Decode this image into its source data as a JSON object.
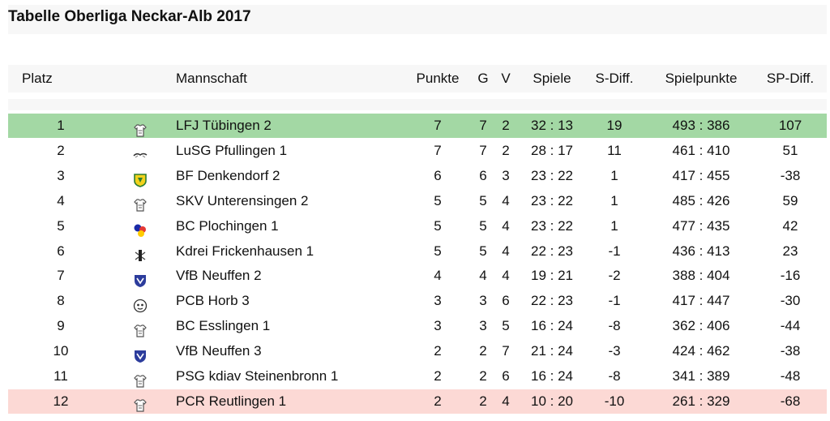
{
  "title": "Tabelle Oberliga Neckar-Alb 2017",
  "columns": {
    "platz": "Platz",
    "mannschaft": "Mannschaft",
    "punkte": "Punkte",
    "g": "G",
    "v": "V",
    "spiele": "Spiele",
    "s_diff": "S-Diff.",
    "spielpunkte": "Spielpunkte",
    "sp_diff": "SP-Diff."
  },
  "rows": [
    {
      "platz": "1",
      "team": "LFJ Tübingen 2",
      "punkte": "7",
      "g": "7",
      "v": "2",
      "spiele": "32 : 13",
      "s_diff": "19",
      "spielpunkte": "493 : 386",
      "sp_diff": "107",
      "logo": "shirt-icon",
      "highlight": "green"
    },
    {
      "platz": "2",
      "team": "LuSG Pfullingen 1",
      "punkte": "7",
      "g": "7",
      "v": "2",
      "spiele": "28 : 17",
      "s_diff": "11",
      "spielpunkte": "461 : 410",
      "sp_diff": "51",
      "logo": "bird-logo-icon",
      "highlight": ""
    },
    {
      "platz": "3",
      "team": "BF Denkendorf 2",
      "punkte": "6",
      "g": "6",
      "v": "3",
      "spiele": "23 : 22",
      "s_diff": "1",
      "spielpunkte": "417 : 455",
      "sp_diff": "-38",
      "logo": "crest-yellow-icon",
      "highlight": ""
    },
    {
      "platz": "4",
      "team": "SKV Unterensingen 2",
      "punkte": "5",
      "g": "5",
      "v": "4",
      "spiele": "23 : 22",
      "s_diff": "1",
      "spielpunkte": "485 : 426",
      "sp_diff": "59",
      "logo": "shirt-icon",
      "highlight": ""
    },
    {
      "platz": "5",
      "team": "BC Plochingen 1",
      "punkte": "5",
      "g": "5",
      "v": "4",
      "spiele": "23 : 22",
      "s_diff": "1",
      "spielpunkte": "477 : 435",
      "sp_diff": "42",
      "logo": "balls-logo-icon",
      "highlight": ""
    },
    {
      "platz": "6",
      "team": "Kdrei Frickenhausen 1",
      "punkte": "5",
      "g": "5",
      "v": "4",
      "spiele": "22 : 23",
      "s_diff": "-1",
      "spielpunkte": "436 : 413",
      "sp_diff": "23",
      "logo": "figure-logo-icon",
      "highlight": ""
    },
    {
      "platz": "7",
      "team": "VfB Neuffen 2",
      "punkte": "4",
      "g": "4",
      "v": "4",
      "spiele": "19 : 21",
      "s_diff": "-2",
      "spielpunkte": "388 : 404",
      "sp_diff": "-16",
      "logo": "shield-blue-icon",
      "highlight": ""
    },
    {
      "platz": "8",
      "team": "PCB Horb 3",
      "punkte": "3",
      "g": "3",
      "v": "6",
      "spiele": "22 : 23",
      "s_diff": "-1",
      "spielpunkte": "417 : 447",
      "sp_diff": "-30",
      "logo": "round-logo-icon",
      "highlight": ""
    },
    {
      "platz": "9",
      "team": "BC Esslingen 1",
      "punkte": "3",
      "g": "3",
      "v": "5",
      "spiele": "16 : 24",
      "s_diff": "-8",
      "spielpunkte": "362 : 406",
      "sp_diff": "-44",
      "logo": "shirt-icon",
      "highlight": ""
    },
    {
      "platz": "10",
      "team": "VfB Neuffen 3",
      "punkte": "2",
      "g": "2",
      "v": "7",
      "spiele": "21 : 24",
      "s_diff": "-3",
      "spielpunkte": "424 : 462",
      "sp_diff": "-38",
      "logo": "shield-blue-icon",
      "highlight": ""
    },
    {
      "platz": "11",
      "team": "PSG kdiav Steinenbronn 1",
      "punkte": "2",
      "g": "2",
      "v": "6",
      "spiele": "16 : 24",
      "s_diff": "-8",
      "spielpunkte": "341 : 389",
      "sp_diff": "-48",
      "logo": "shirt-icon",
      "highlight": ""
    },
    {
      "platz": "12",
      "team": "PCR Reutlingen 1",
      "punkte": "2",
      "g": "2",
      "v": "4",
      "spiele": "10 : 20",
      "s_diff": "-10",
      "spielpunkte": "261 : 329",
      "sp_diff": "-68",
      "logo": "shirt-icon",
      "highlight": "red"
    }
  ]
}
